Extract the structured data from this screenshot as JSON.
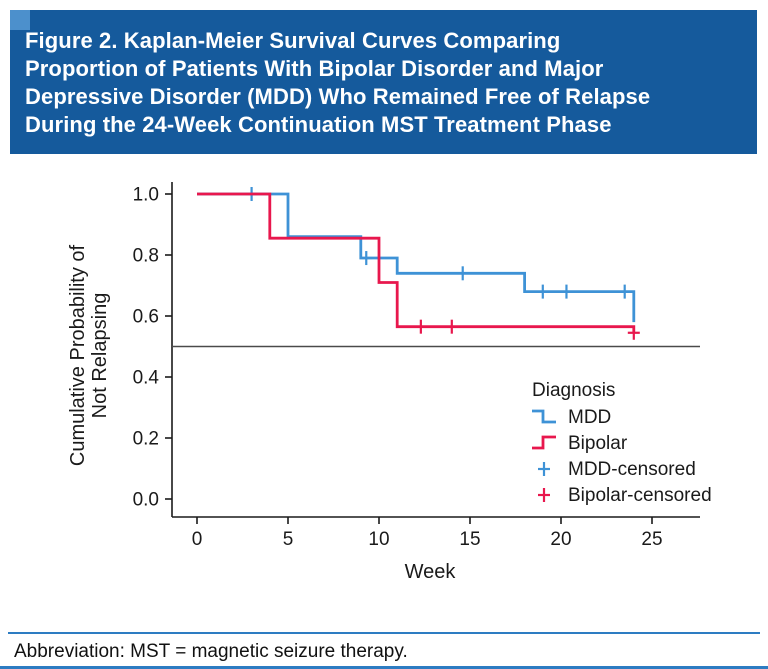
{
  "header": {
    "title": "Figure 2. Kaplan-Meier Survival Curves Comparing\nProportion of Patients With Bipolar Disorder and Major\nDepressive Disorder (MDD) Who Remained Free of Relapse\nDuring the 24-Week Continuation MST Treatment Phase",
    "background_color": "#155a9c",
    "corner_square_color": "#4c90cc",
    "text_color": "#ffffff"
  },
  "footer": {
    "abbreviation": "Abbreviation: MST = magnetic seizure therapy.",
    "rule_color": "#2d7cc2"
  },
  "chart_data": {
    "type": "line",
    "variant": "kaplan-meier-step",
    "title": "",
    "xlabel": "Week",
    "ylabel": "Cumulative Probability of Not Relapsing",
    "ylabel_lines": [
      "Cumulative Probability of",
      "Not Relapsing"
    ],
    "xlim": [
      0,
      25
    ],
    "ylim": [
      0.0,
      1.0
    ],
    "xticks": [
      0,
      5,
      10,
      15,
      20,
      25
    ],
    "xtick_labels": [
      "0",
      "5",
      "10",
      "15",
      "20",
      "25"
    ],
    "yticks": [
      1.0,
      0.8,
      0.6,
      0.4,
      0.2,
      0.0
    ],
    "ytick_labels": [
      "1.0",
      "0.8",
      "0.6",
      "0.4",
      "0.2",
      "0.0"
    ],
    "grid": false,
    "reference_line_y": 0.5,
    "legend": {
      "title": "Diagnosis",
      "position": "lower-right-inside",
      "entries": [
        {
          "label": "MDD",
          "type": "step-line",
          "color": "#3e92d6"
        },
        {
          "label": "Bipolar",
          "type": "step-line",
          "color": "#e8174d"
        },
        {
          "label": "MDD-censored",
          "type": "plus-marker",
          "color": "#3e92d6"
        },
        {
          "label": "Bipolar-censored",
          "type": "plus-marker",
          "color": "#e8174d"
        }
      ]
    },
    "series": [
      {
        "name": "MDD",
        "color": "#3e92d6",
        "steps": [
          [
            0,
            1.0
          ],
          [
            5,
            1.0
          ],
          [
            5,
            0.86
          ],
          [
            9,
            0.86
          ],
          [
            9,
            0.79
          ],
          [
            11,
            0.79
          ],
          [
            11,
            0.74
          ],
          [
            18,
            0.74
          ],
          [
            18,
            0.68
          ],
          [
            24,
            0.68
          ],
          [
            24,
            0.58
          ]
        ],
        "censored": [
          [
            3,
            1.0
          ],
          [
            9.3,
            0.79
          ],
          [
            14.6,
            0.74
          ],
          [
            19,
            0.68
          ],
          [
            20.3,
            0.68
          ],
          [
            23.5,
            0.68
          ]
        ]
      },
      {
        "name": "Bipolar",
        "color": "#e8174d",
        "steps": [
          [
            0,
            1.0
          ],
          [
            4,
            1.0
          ],
          [
            4,
            0.855
          ],
          [
            10,
            0.855
          ],
          [
            10,
            0.71
          ],
          [
            11,
            0.71
          ],
          [
            11,
            0.565
          ],
          [
            24,
            0.565
          ],
          [
            24,
            0.545
          ]
        ],
        "censored": [
          [
            12.3,
            0.565
          ],
          [
            14,
            0.565
          ],
          [
            24,
            0.545
          ]
        ]
      }
    ]
  }
}
